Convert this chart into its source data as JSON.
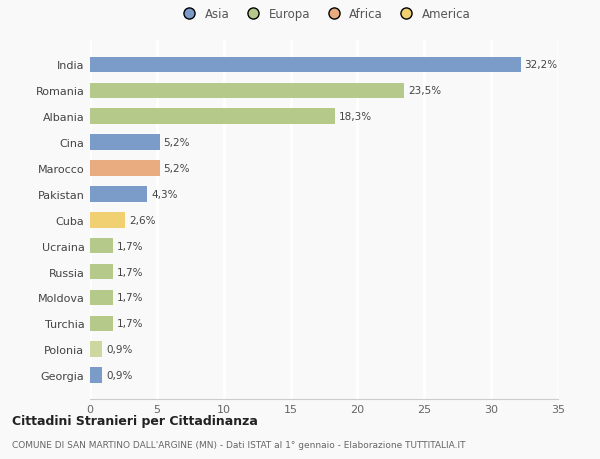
{
  "categories": [
    "India",
    "Romania",
    "Albania",
    "Cina",
    "Marocco",
    "Pakistan",
    "Cuba",
    "Ucraina",
    "Russia",
    "Moldova",
    "Turchia",
    "Polonia",
    "Georgia"
  ],
  "values": [
    32.2,
    23.5,
    18.3,
    5.2,
    5.2,
    4.3,
    2.6,
    1.7,
    1.7,
    1.7,
    1.7,
    0.9,
    0.9
  ],
  "labels": [
    "32,2%",
    "23,5%",
    "18,3%",
    "5,2%",
    "5,2%",
    "4,3%",
    "2,6%",
    "1,7%",
    "1,7%",
    "1,7%",
    "1,7%",
    "0,9%",
    "0,9%"
  ],
  "colors": [
    "#7b9bc8",
    "#b5c98a",
    "#b5c98a",
    "#7b9bc8",
    "#e8ac80",
    "#7b9bc8",
    "#f0d070",
    "#b5c98a",
    "#b5c98a",
    "#b5c98a",
    "#b5c98a",
    "#ccd8a0",
    "#7b9bc8"
  ],
  "legend_labels": [
    "Asia",
    "Europa",
    "Africa",
    "America"
  ],
  "legend_colors": [
    "#7b9bc8",
    "#b5c98a",
    "#e8ac80",
    "#f0d070"
  ],
  "title": "Cittadini Stranieri per Cittadinanza",
  "subtitle": "COMUNE DI SAN MARTINO DALL'ARGINE (MN) - Dati ISTAT al 1° gennaio - Elaborazione TUTTITALIA.IT",
  "xlim": [
    0,
    35
  ],
  "xticks": [
    0,
    5,
    10,
    15,
    20,
    25,
    30,
    35
  ],
  "background_color": "#f9f9f9",
  "grid_color": "#ffffff",
  "bar_height": 0.6
}
